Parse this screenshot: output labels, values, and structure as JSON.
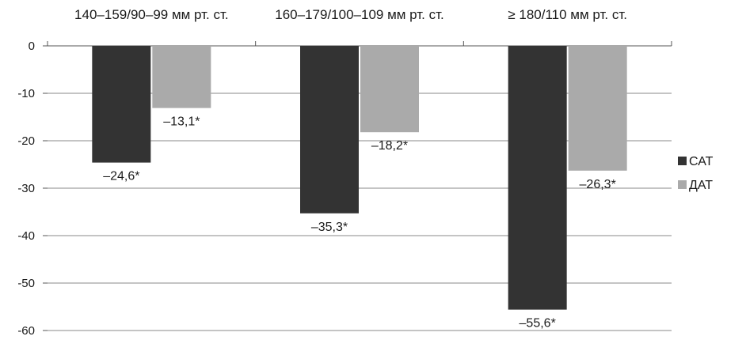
{
  "chart_data": {
    "type": "bar",
    "categories": [
      "140–159/90–99 мм рт. ст.",
      "160–179/100–109 мм рт. ст.",
      "≥ 180/110 мм рт. ст."
    ],
    "series": [
      {
        "name": "САТ",
        "values": [
          -24.6,
          -35.3,
          -55.6
        ],
        "labels": [
          "–24,6*",
          "–35,3*",
          "–55,6*"
        ],
        "color": "#333333"
      },
      {
        "name": "ДАТ",
        "values": [
          -13.1,
          -18.2,
          -26.3
        ],
        "labels": [
          "–13,1*",
          "–18,2*",
          "–26,3*"
        ],
        "color": "#aaaaaa"
      }
    ],
    "yticks": [
      "0",
      "-10",
      "-20",
      "-30",
      "-40",
      "-50",
      "-60"
    ],
    "ylim": [
      -60,
      0
    ],
    "grid": true,
    "category_labels_position": "top",
    "legend_position": "right"
  }
}
